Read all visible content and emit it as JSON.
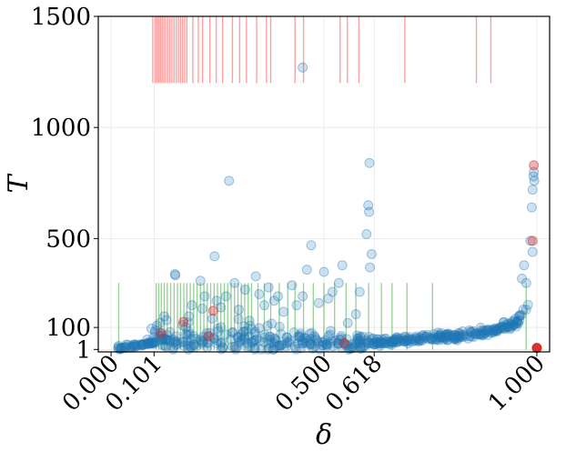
{
  "chart_data": {
    "type": "scatter",
    "xlabel": "δ",
    "ylabel": "T",
    "xlim": [
      -0.03,
      1.03
    ],
    "ylim": [
      -10,
      1500
    ],
    "x_ticks": [
      {
        "value": 0.0,
        "label": "0.000"
      },
      {
        "value": 0.101,
        "label": "0.101"
      },
      {
        "value": 0.5,
        "label": "0.500"
      },
      {
        "value": 0.618,
        "label": "0.618"
      },
      {
        "value": 1.0,
        "label": "1.000"
      }
    ],
    "y_ticks": [
      {
        "value": 1,
        "label": "1"
      },
      {
        "value": 100,
        "label": "100"
      },
      {
        "value": 500,
        "label": "500"
      },
      {
        "value": 1000,
        "label": "1000"
      },
      {
        "value": 1500,
        "label": "1500"
      }
    ],
    "grid": true,
    "colors": {
      "points": "#1f77b4",
      "highlight_points": "#d62728",
      "red_lines": "#ff6b6b",
      "green_lines": "#2ca02c"
    },
    "red_vlines": {
      "y_range": [
        1200,
        1500
      ],
      "x": [
        0.098,
        0.104,
        0.108,
        0.112,
        0.116,
        0.12,
        0.124,
        0.128,
        0.133,
        0.138,
        0.143,
        0.148,
        0.153,
        0.158,
        0.163,
        0.168,
        0.173,
        0.178,
        0.192,
        0.205,
        0.215,
        0.232,
        0.247,
        0.262,
        0.285,
        0.302,
        0.318,
        0.342,
        0.365,
        0.375,
        0.432,
        0.452,
        0.538,
        0.555,
        0.582,
        0.69,
        0.858,
        0.892
      ]
    },
    "green_vlines": {
      "y_range": [
        0,
        300
      ],
      "x": [
        0.018,
        0.106,
        0.112,
        0.118,
        0.125,
        0.132,
        0.14,
        0.148,
        0.156,
        0.163,
        0.171,
        0.178,
        0.186,
        0.194,
        0.202,
        0.21,
        0.218,
        0.226,
        0.234,
        0.242,
        0.25,
        0.258,
        0.266,
        0.274,
        0.282,
        0.29,
        0.298,
        0.306,
        0.314,
        0.322,
        0.33,
        0.345,
        0.36,
        0.375,
        0.395,
        0.415,
        0.432,
        0.452,
        0.475,
        0.5,
        0.525,
        0.552,
        0.575,
        0.605,
        0.635,
        0.66,
        0.695,
        0.755,
        0.975
      ]
    },
    "outliers": [
      {
        "x": 0.023,
        "y": 5
      },
      {
        "x": 0.035,
        "y": 8
      },
      {
        "x": 0.058,
        "y": 14
      },
      {
        "x": 0.085,
        "y": 45
      },
      {
        "x": 0.095,
        "y": 95
      },
      {
        "x": 0.1,
        "y": 55
      },
      {
        "x": 0.115,
        "y": 120
      },
      {
        "x": 0.125,
        "y": 150
      },
      {
        "x": 0.15,
        "y": 340
      },
      {
        "x": 0.151,
        "y": 335
      },
      {
        "x": 0.168,
        "y": 110
      },
      {
        "x": 0.176,
        "y": 100
      },
      {
        "x": 0.183,
        "y": 150
      },
      {
        "x": 0.19,
        "y": 200
      },
      {
        "x": 0.21,
        "y": 310
      },
      {
        "x": 0.214,
        "y": 185
      },
      {
        "x": 0.22,
        "y": 240
      },
      {
        "x": 0.228,
        "y": 60
      },
      {
        "x": 0.238,
        "y": 140
      },
      {
        "x": 0.243,
        "y": 420
      },
      {
        "x": 0.248,
        "y": 220
      },
      {
        "x": 0.258,
        "y": 190
      },
      {
        "x": 0.27,
        "y": 240
      },
      {
        "x": 0.277,
        "y": 760
      },
      {
        "x": 0.29,
        "y": 300
      },
      {
        "x": 0.3,
        "y": 180
      },
      {
        "x": 0.315,
        "y": 270
      },
      {
        "x": 0.325,
        "y": 130
      },
      {
        "x": 0.34,
        "y": 330
      },
      {
        "x": 0.348,
        "y": 250
      },
      {
        "x": 0.36,
        "y": 200
      },
      {
        "x": 0.37,
        "y": 280
      },
      {
        "x": 0.383,
        "y": 220
      },
      {
        "x": 0.392,
        "y": 240
      },
      {
        "x": 0.405,
        "y": 170
      },
      {
        "x": 0.425,
        "y": 290
      },
      {
        "x": 0.436,
        "y": 200
      },
      {
        "x": 0.45,
        "y": 240
      },
      {
        "x": 0.46,
        "y": 360
      },
      {
        "x": 0.47,
        "y": 470
      },
      {
        "x": 0.488,
        "y": 210
      },
      {
        "x": 0.5,
        "y": 350
      },
      {
        "x": 0.51,
        "y": 230
      },
      {
        "x": 0.52,
        "y": 260
      },
      {
        "x": 0.535,
        "y": 300
      },
      {
        "x": 0.543,
        "y": 380
      },
      {
        "x": 0.556,
        "y": 120
      },
      {
        "x": 0.575,
        "y": 160
      },
      {
        "x": 0.584,
        "y": 260
      },
      {
        "x": 0.6,
        "y": 520
      },
      {
        "x": 0.604,
        "y": 650
      },
      {
        "x": 0.606,
        "y": 620
      },
      {
        "x": 0.607,
        "y": 840
      },
      {
        "x": 0.608,
        "y": 370
      },
      {
        "x": 0.612,
        "y": 430
      },
      {
        "x": 0.45,
        "y": 1270
      },
      {
        "x": 0.985,
        "y": 490
      },
      {
        "x": 0.988,
        "y": 640
      },
      {
        "x": 0.99,
        "y": 720
      },
      {
        "x": 0.992,
        "y": 780
      },
      {
        "x": 0.993,
        "y": 800
      },
      {
        "x": 0.994,
        "y": 760
      },
      {
        "x": 0.97,
        "y": 380
      },
      {
        "x": 0.975,
        "y": 300
      },
      {
        "x": 0.965,
        "y": 320
      },
      {
        "x": 0.99,
        "y": 440
      }
    ],
    "highlight_points": [
      {
        "x": 0.118,
        "y": 75
      },
      {
        "x": 0.17,
        "y": 125
      },
      {
        "x": 0.23,
        "y": 60
      },
      {
        "x": 0.24,
        "y": 175
      },
      {
        "x": 0.547,
        "y": 30
      },
      {
        "x": 0.993,
        "y": 830
      },
      {
        "x": 0.99,
        "y": 490
      },
      {
        "x": 1.0,
        "y": 8
      }
    ]
  }
}
